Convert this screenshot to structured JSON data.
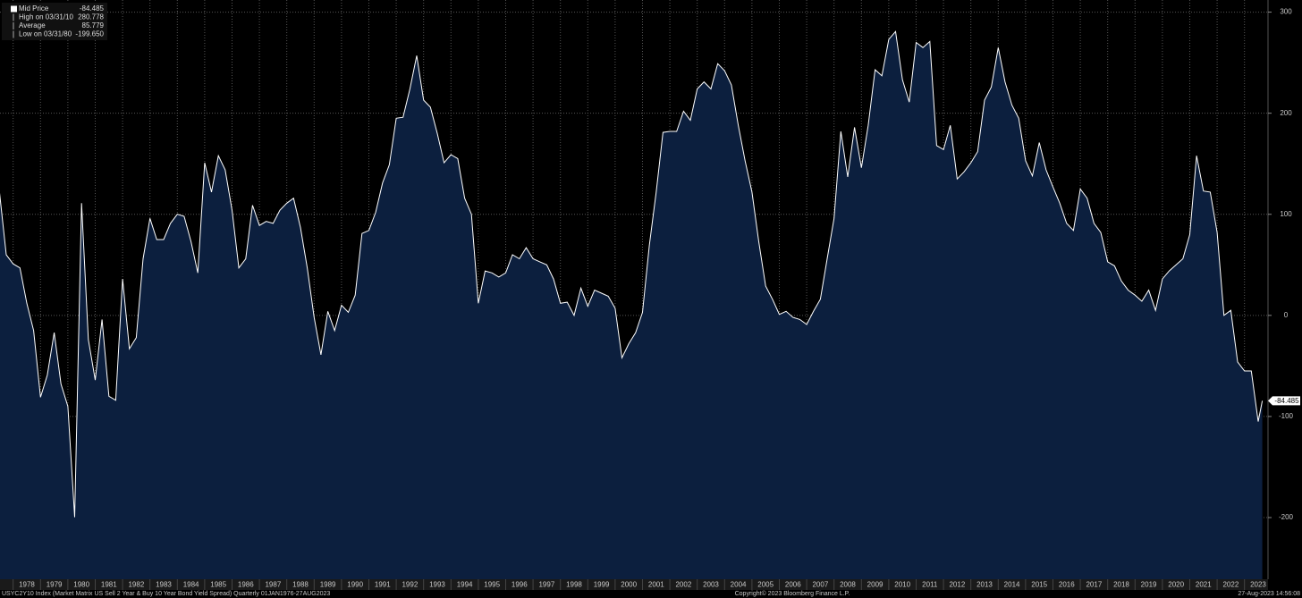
{
  "chart_data": {
    "type": "area",
    "legend": [
      {
        "label": "Mid Price",
        "value": "-84.485"
      },
      {
        "label": "High on 03/31/10",
        "value": "280.778"
      },
      {
        "label": "Average",
        "value": "85.779"
      },
      {
        "label": "Low on 03/31/80",
        "value": "-199.650"
      }
    ],
    "footer_left": "USYC2Y10 Index (Market Matrix US Sell 2 Year & Buy 10 Year Bond Yield Spread)  Quarterly 01JAN1976-27AUG2023",
    "footer_center": "Copyright© 2023 Bloomberg Finance L.P.",
    "footer_right": "27-Aug-2023 14:56:08",
    "line_color": "#ffffff",
    "fill_color": "#0c1f3e",
    "grid": true,
    "xlim": [
      1977.52,
      2023.86
    ],
    "ylim": [
      -261,
      312
    ],
    "yticks": [
      300,
      200,
      100,
      0,
      -100,
      -200
    ],
    "xticks": [
      1978,
      1979,
      1980,
      1981,
      1982,
      1983,
      1984,
      1985,
      1986,
      1987,
      1988,
      1989,
      1990,
      1991,
      1992,
      1993,
      1994,
      1995,
      1996,
      1997,
      1998,
      1999,
      2000,
      2001,
      2002,
      2003,
      2004,
      2005,
      2006,
      2007,
      2008,
      2009,
      2010,
      2011,
      2012,
      2013,
      2014,
      2015,
      2016,
      2017,
      2018,
      2019,
      2020,
      2021,
      2022,
      2023
    ],
    "x": [
      1977.5,
      1977.75,
      1978,
      1978.25,
      1978.5,
      1978.75,
      1979,
      1979.25,
      1979.5,
      1979.75,
      1980,
      1980.25,
      1980.5,
      1980.75,
      1981,
      1981.25,
      1981.5,
      1981.75,
      1982,
      1982.25,
      1982.5,
      1982.75,
      1983,
      1983.25,
      1983.5,
      1983.75,
      1984,
      1984.25,
      1984.5,
      1984.75,
      1985,
      1985.25,
      1985.5,
      1985.75,
      1986,
      1986.25,
      1986.5,
      1986.75,
      1987,
      1987.25,
      1987.5,
      1987.75,
      1988,
      1988.25,
      1988.5,
      1988.75,
      1989,
      1989.25,
      1989.5,
      1989.75,
      1990,
      1990.25,
      1990.5,
      1990.75,
      1991,
      1991.25,
      1991.5,
      1991.75,
      1992,
      1992.25,
      1992.5,
      1992.75,
      1993,
      1993.25,
      1993.5,
      1993.75,
      1994,
      1994.25,
      1994.5,
      1994.75,
      1995,
      1995.25,
      1995.5,
      1995.75,
      1996,
      1996.25,
      1996.5,
      1996.75,
      1997,
      1997.25,
      1997.5,
      1997.75,
      1998,
      1998.25,
      1998.5,
      1998.75,
      1999,
      1999.25,
      1999.5,
      1999.75,
      2000,
      2000.25,
      2000.5,
      2000.75,
      2001,
      2001.25,
      2001.5,
      2001.75,
      2002,
      2002.25,
      2002.5,
      2002.75,
      2003,
      2003.25,
      2003.5,
      2003.75,
      2004,
      2004.25,
      2004.5,
      2004.75,
      2005,
      2005.25,
      2005.5,
      2005.75,
      2006,
      2006.25,
      2006.5,
      2006.75,
      2007,
      2007.25,
      2007.5,
      2007.75,
      2008,
      2008.25,
      2008.5,
      2008.75,
      2009,
      2009.25,
      2009.5,
      2009.75,
      2010,
      2010.25,
      2010.5,
      2010.75,
      2011,
      2011.25,
      2011.5,
      2011.75,
      2012,
      2012.25,
      2012.5,
      2012.75,
      2013,
      2013.25,
      2013.5,
      2013.75,
      2014,
      2014.25,
      2014.5,
      2014.75,
      2015,
      2015.25,
      2015.5,
      2015.75,
      2016,
      2016.25,
      2016.5,
      2016.75,
      2017,
      2017.25,
      2017.5,
      2017.75,
      2018,
      2018.25,
      2018.5,
      2018.75,
      2019,
      2019.25,
      2019.5,
      2019.75,
      2020,
      2020.25,
      2020.5,
      2020.75,
      2021,
      2021.25,
      2021.5,
      2021.75,
      2022,
      2022.25,
      2022.5,
      2022.75,
      2023,
      2023.25,
      2023.5,
      2023.65
    ],
    "values": [
      122,
      60,
      51,
      47,
      12,
      -15,
      -81,
      -59,
      -17,
      -68,
      -90,
      -199.65,
      111,
      -24,
      -64,
      -4,
      -80,
      -84,
      36,
      -33,
      -22,
      56,
      96,
      75,
      75,
      91,
      100,
      98,
      73,
      42,
      151,
      122,
      158,
      144,
      104,
      47,
      56,
      109,
      89,
      93,
      91,
      104,
      111,
      116,
      87,
      47,
      -2,
      -39,
      4,
      -15,
      10,
      3,
      20,
      81,
      84,
      102,
      131,
      149,
      195,
      196,
      224,
      257,
      213,
      206,
      180,
      151,
      159,
      155,
      116,
      100,
      12,
      44,
      42,
      38,
      42,
      60,
      56,
      67,
      56,
      53,
      50,
      36,
      12,
      13,
      0,
      27,
      9,
      25,
      22,
      19,
      7,
      -42,
      -28,
      -17,
      3,
      69,
      122,
      181,
      182,
      182,
      202,
      193,
      224,
      231,
      224,
      249,
      242,
      228,
      188,
      153,
      122,
      73,
      29,
      16,
      1,
      4,
      -2,
      -4,
      -9,
      4,
      16,
      56,
      96,
      182,
      137,
      186,
      146,
      188,
      243,
      237,
      273,
      280.778,
      233,
      211,
      270,
      265,
      271,
      168,
      164,
      188,
      135,
      142,
      151,
      162,
      213,
      226,
      265,
      231,
      208,
      195,
      153,
      138,
      171,
      144,
      127,
      111,
      91,
      84,
      125,
      116,
      91,
      82,
      53,
      49,
      34,
      25,
      20,
      14,
      25,
      5,
      36,
      44,
      50,
      56,
      80,
      158,
      123,
      122,
      82,
      0,
      5,
      -46,
      -55,
      -55,
      -105,
      -84.485
    ]
  }
}
